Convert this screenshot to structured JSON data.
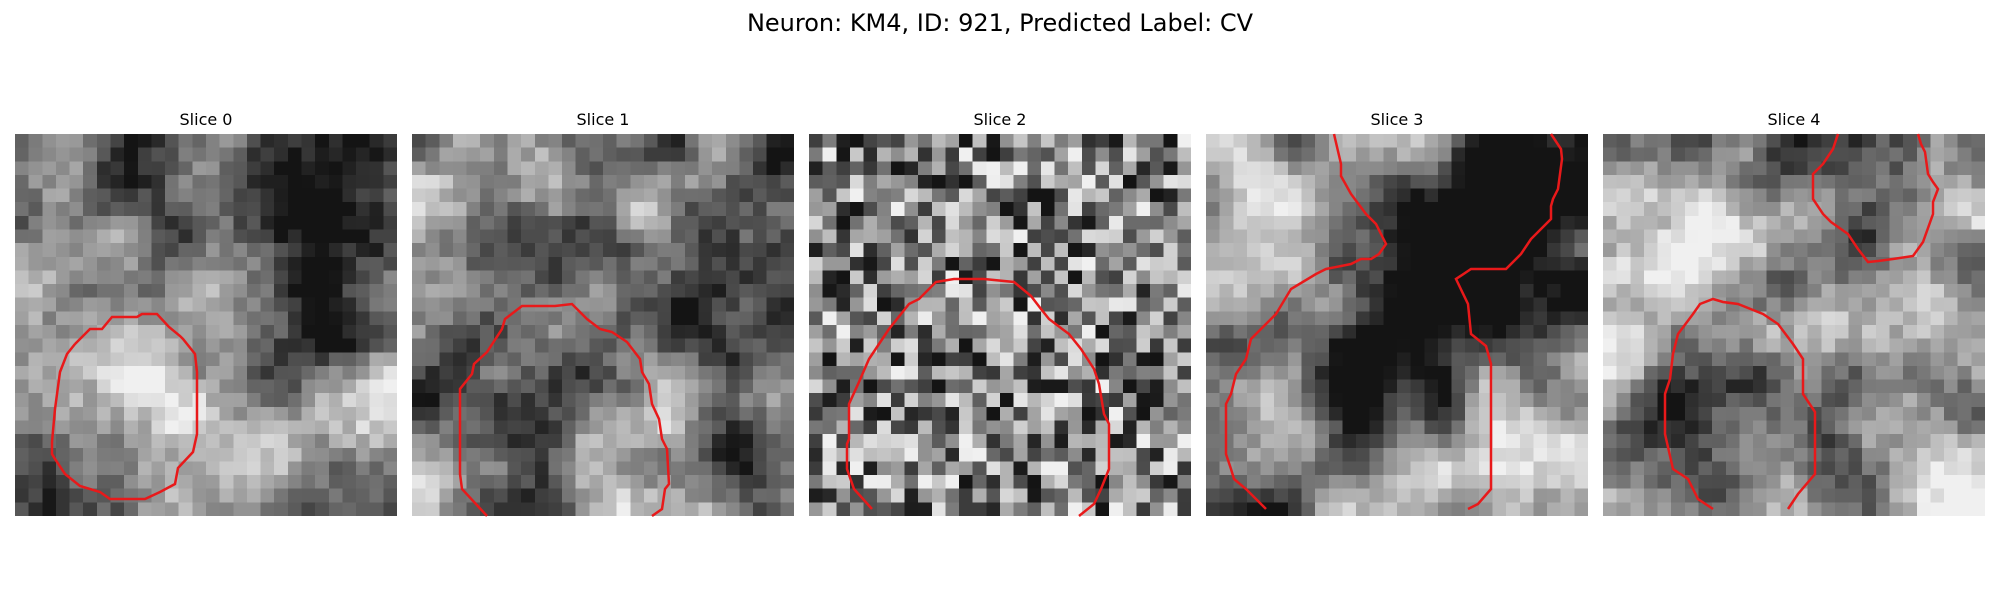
{
  "figure": {
    "title": "Neuron: KM4, ID: 921, Predicted Label: CV"
  },
  "colors": {
    "contour": "#e8191a",
    "background": "#ffffff"
  },
  "panels": [
    {
      "title": "Slice 0"
    },
    {
      "title": "Slice 1"
    },
    {
      "title": "Slice 2"
    },
    {
      "title": "Slice 3"
    },
    {
      "title": "Slice 4"
    }
  ]
}
